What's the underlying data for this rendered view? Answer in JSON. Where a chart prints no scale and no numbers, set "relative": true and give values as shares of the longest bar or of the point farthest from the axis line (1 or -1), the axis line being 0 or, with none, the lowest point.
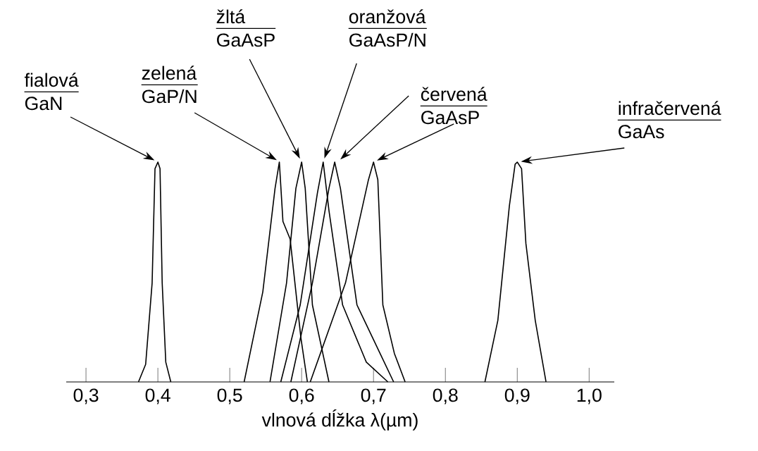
{
  "chart_data": {
    "type": "line",
    "relative": true,
    "xlabel": "vlnová dĺžka λ(µm)",
    "xlim": [
      0.2725,
      1.035
    ],
    "xticks": [
      {
        "value": 0.3,
        "label": "0,3"
      },
      {
        "value": 0.4,
        "label": "0,4"
      },
      {
        "value": 0.5,
        "label": "0,5"
      },
      {
        "value": 0.6,
        "label": "0,6"
      },
      {
        "value": 0.7,
        "label": "0,7"
      },
      {
        "value": 0.8,
        "label": "0,8"
      },
      {
        "value": 0.9,
        "label": "0,9"
      },
      {
        "value": 1.0,
        "label": "1,0"
      }
    ],
    "series": [
      {
        "color": "#000000",
        "x": [
          0.373,
          0.383,
          0.392,
          0.396,
          0.4,
          0.403,
          0.406,
          0.411,
          0.418
        ],
        "values": [
          0,
          0.08,
          0.45,
          0.97,
          1,
          0.97,
          0.45,
          0.09,
          0
        ]
      },
      {
        "color": "#000000",
        "x": [
          0.52,
          0.546,
          0.563,
          0.569,
          0.574,
          0.584,
          0.589,
          0.599,
          0.608
        ],
        "values": [
          0,
          0.41,
          0.88,
          1,
          0.73,
          0.65,
          0.5,
          0.2,
          0
        ]
      },
      {
        "color": "#000000",
        "x": [
          0.556,
          0.579,
          0.592,
          0.6,
          0.605,
          0.615,
          0.638
        ],
        "values": [
          0,
          0.45,
          0.88,
          1,
          0.88,
          0.35,
          0
        ]
      },
      {
        "color": "#000000",
        "x": [
          0.571,
          0.598,
          0.622,
          0.63,
          0.638,
          0.657,
          0.69,
          0.72
        ],
        "values": [
          0,
          0.35,
          0.86,
          1,
          0.78,
          0.35,
          0.09,
          0
        ]
      },
      {
        "color": "#000000",
        "x": [
          0.585,
          0.615,
          0.638,
          0.646,
          0.654,
          0.677,
          0.728
        ],
        "values": [
          0,
          0.45,
          0.88,
          1,
          0.88,
          0.35,
          0
        ]
      },
      {
        "color": "#000000",
        "x": [
          0.612,
          0.661,
          0.693,
          0.7,
          0.706,
          0.713,
          0.729,
          0.744
        ],
        "values": [
          0,
          0.45,
          0.92,
          1,
          0.92,
          0.35,
          0.13,
          0
        ]
      },
      {
        "color": "#000000",
        "x": [
          0.855,
          0.873,
          0.889,
          0.897,
          0.9,
          0.906,
          0.912,
          0.925,
          0.94
        ],
        "values": [
          0,
          0.28,
          0.8,
          0.99,
          1,
          0.97,
          0.63,
          0.28,
          0
        ]
      }
    ],
    "annotations": [
      "fialová",
      {
        "text": "GaN",
        "x": 0.4,
        "y": 1
      },
      "zelená",
      {
        "text": "GaP/N",
        "x": 0.57,
        "y": 1
      },
      "žltá",
      {
        "text": "GaAsP",
        "x": 0.6,
        "y": 1
      },
      "oranžová",
      {
        "text": "GaAsP/N",
        "x": 0.63,
        "y": 1
      },
      {
        "text": "červená",
        "x": 0.65,
        "y": 1
      },
      {
        "text": "GaAsP",
        "x": 0.7,
        "y": 1
      },
      "infračervená",
      {
        "text": "GaAs",
        "x": 0.9,
        "y": 1
      }
    ]
  }
}
